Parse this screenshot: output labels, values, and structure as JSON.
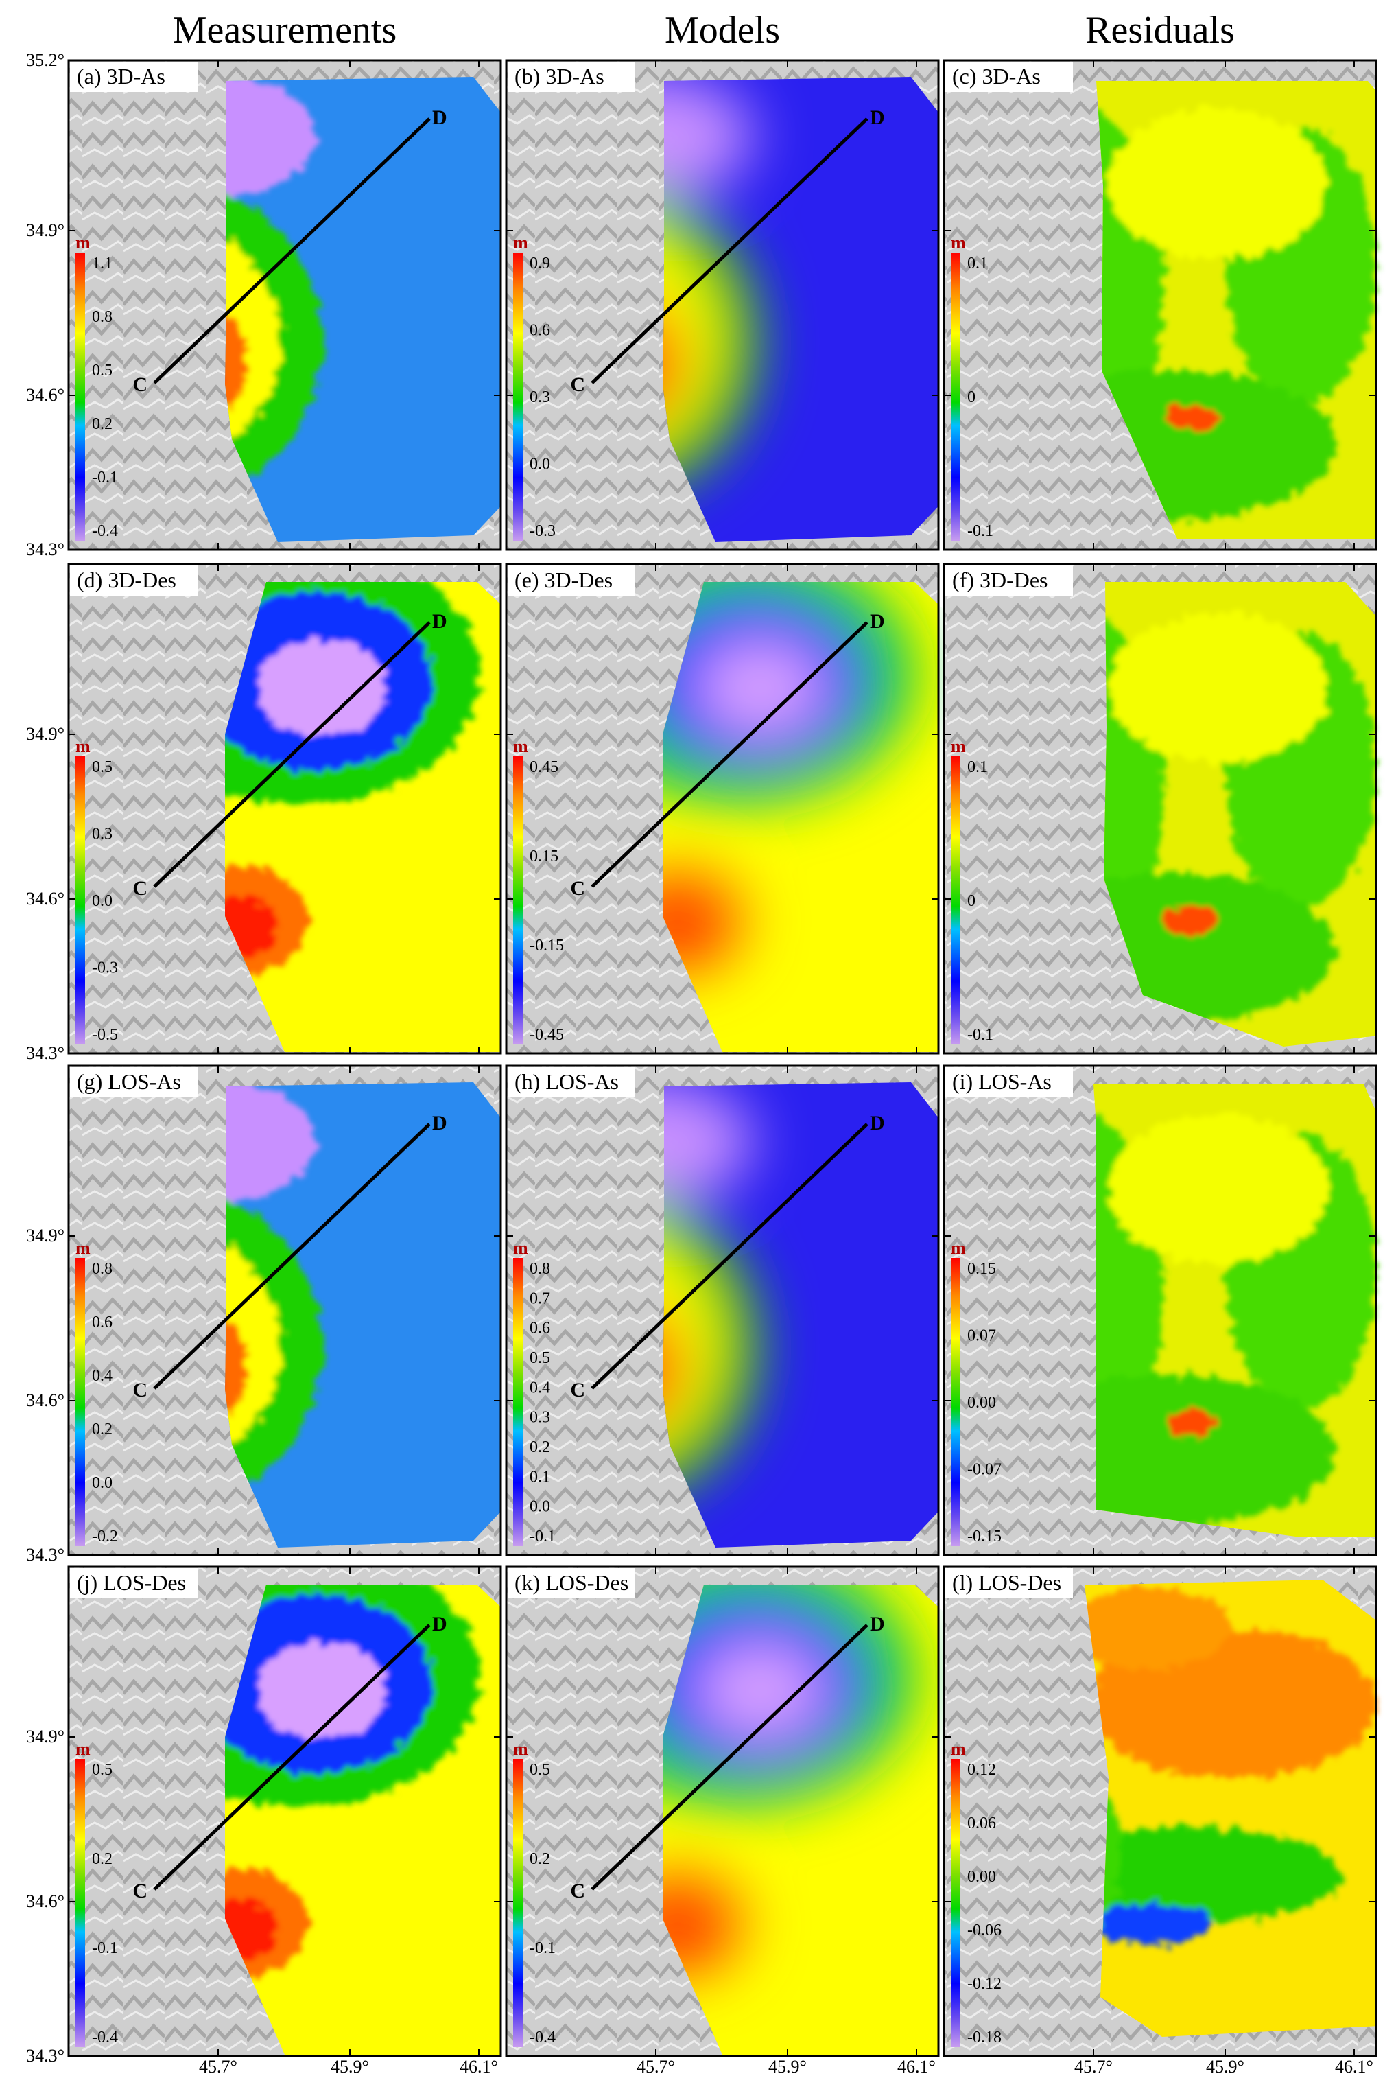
{
  "column_titles": [
    "Measurements",
    "Models",
    "Residuals"
  ],
  "lat_ticks": [
    "35.2°",
    "34.9°",
    "34.6°",
    "34.3°"
  ],
  "lon_ticks": [
    "45.7°",
    "45.9°",
    "46.1°"
  ],
  "unit": "m",
  "profile_labels": {
    "start": "C",
    "end": "D"
  },
  "rows": [
    {
      "panels": [
        {
          "id": "a",
          "title": "(a) 3D-As",
          "kind": "meas",
          "pattern": "As",
          "colorbar": [
            "1.1",
            "0.8",
            "0.5",
            "0.2",
            "-0.1",
            "-0.4"
          ]
        },
        {
          "id": "b",
          "title": "(b) 3D-As",
          "kind": "model",
          "pattern": "As",
          "colorbar": [
            "0.9",
            "0.6",
            "0.3",
            "0.0",
            "-0.3"
          ]
        },
        {
          "id": "c",
          "title": "(c) 3D-As",
          "kind": "res",
          "pattern": "As",
          "colorbar": [
            "0.1",
            "0",
            "-0.1"
          ]
        }
      ]
    },
    {
      "panels": [
        {
          "id": "d",
          "title": "(d) 3D-Des",
          "kind": "meas",
          "pattern": "Des",
          "colorbar": [
            "0.5",
            "0.3",
            "0.0",
            "-0.3",
            "-0.5"
          ]
        },
        {
          "id": "e",
          "title": "(e) 3D-Des",
          "kind": "model",
          "pattern": "Des",
          "colorbar": [
            "0.45",
            "0.15",
            "-0.15",
            "-0.45"
          ]
        },
        {
          "id": "f",
          "title": "(f) 3D-Des",
          "kind": "res",
          "pattern": "Des",
          "colorbar": [
            "0.1",
            "0",
            "-0.1"
          ]
        }
      ]
    },
    {
      "panels": [
        {
          "id": "g",
          "title": "(g) LOS-As",
          "kind": "meas",
          "pattern": "As",
          "colorbar": [
            "0.8",
            "0.6",
            "0.4",
            "0.2",
            "0.0",
            "-0.2"
          ]
        },
        {
          "id": "h",
          "title": "(h) LOS-As",
          "kind": "model",
          "pattern": "As",
          "colorbar": [
            "0.8",
            "0.7",
            "0.6",
            "0.5",
            "0.4",
            "0.3",
            "0.2",
            "0.1",
            "0.0",
            "-0.1"
          ]
        },
        {
          "id": "i",
          "title": "(i) LOS-As",
          "kind": "res",
          "pattern": "As",
          "colorbar": [
            "0.15",
            "0.07",
            "0.00",
            "-0.07",
            "-0.15"
          ]
        }
      ]
    },
    {
      "panels": [
        {
          "id": "j",
          "title": "(j) LOS-Des",
          "kind": "meas",
          "pattern": "Des",
          "colorbar": [
            "0.5",
            "0.2",
            "-0.1",
            "-0.4"
          ]
        },
        {
          "id": "k",
          "title": "(k) LOS-Des",
          "kind": "model",
          "pattern": "Des",
          "colorbar": [
            "0.5",
            "0.2",
            "-0.1",
            "-0.4"
          ]
        },
        {
          "id": "l",
          "title": "(l) LOS-Des",
          "kind": "res",
          "pattern": "DesRes",
          "colorbar": [
            "0.12",
            "0.06",
            "0.00",
            "-0.06",
            "-0.12",
            "-0.18"
          ]
        }
      ]
    }
  ]
}
